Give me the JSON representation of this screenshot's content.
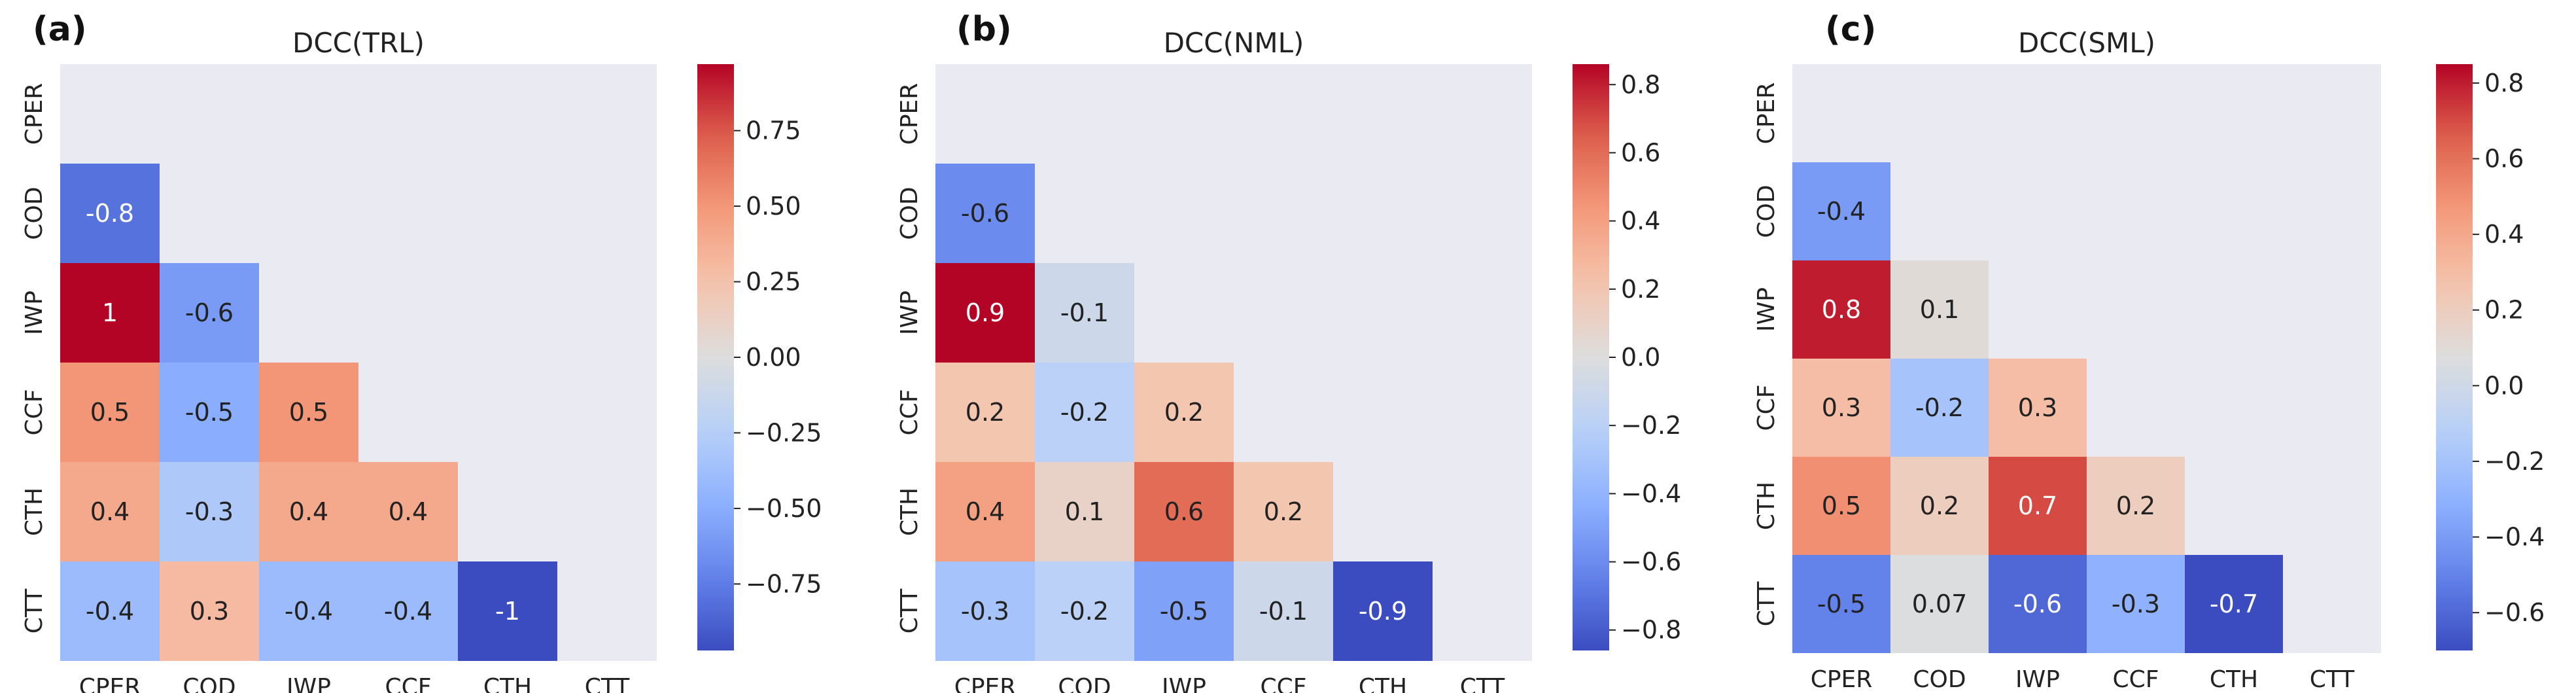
{
  "chart_data": [
    {
      "type": "heatmap",
      "panel_label": "(a)",
      "title": "DCC(TRL)",
      "variables": [
        "CPER",
        "COD",
        "IWP",
        "CCF",
        "CTH",
        "CTT"
      ],
      "mask": "upper-triangle-and-diagonal",
      "cells": [
        {
          "row": "COD",
          "col": "CPER",
          "value": -0.8,
          "label": "-0.8"
        },
        {
          "row": "IWP",
          "col": "CPER",
          "value": 1.0,
          "label": "1"
        },
        {
          "row": "IWP",
          "col": "COD",
          "value": -0.6,
          "label": "-0.6"
        },
        {
          "row": "CCF",
          "col": "CPER",
          "value": 0.5,
          "label": "0.5"
        },
        {
          "row": "CCF",
          "col": "COD",
          "value": -0.5,
          "label": "-0.5"
        },
        {
          "row": "CCF",
          "col": "IWP",
          "value": 0.5,
          "label": "0.5"
        },
        {
          "row": "CTH",
          "col": "CPER",
          "value": 0.4,
          "label": "0.4"
        },
        {
          "row": "CTH",
          "col": "COD",
          "value": -0.3,
          "label": "-0.3"
        },
        {
          "row": "CTH",
          "col": "IWP",
          "value": 0.4,
          "label": "0.4"
        },
        {
          "row": "CTH",
          "col": "CCF",
          "value": 0.4,
          "label": "0.4"
        },
        {
          "row": "CTT",
          "col": "CPER",
          "value": -0.4,
          "label": "-0.4"
        },
        {
          "row": "CTT",
          "col": "COD",
          "value": 0.3,
          "label": "0.3"
        },
        {
          "row": "CTT",
          "col": "IWP",
          "value": -0.4,
          "label": "-0.4"
        },
        {
          "row": "CTT",
          "col": "CCF",
          "value": -0.4,
          "label": "-0.4"
        },
        {
          "row": "CTT",
          "col": "CTH",
          "value": -1.0,
          "label": "-1"
        }
      ],
      "colorbar": {
        "cmap": "coolwarm",
        "vmin": -0.97,
        "vmax": 0.97,
        "ticks": [
          0.75,
          0.5,
          0.25,
          0.0,
          -0.25,
          -0.5,
          -0.75
        ],
        "tick_labels": [
          "0.75",
          "0.50",
          "0.25",
          "0.00",
          "−0.25",
          "−0.50",
          "−0.75"
        ]
      }
    },
    {
      "type": "heatmap",
      "panel_label": "(b)",
      "title": "DCC(NML)",
      "variables": [
        "CPER",
        "COD",
        "IWP",
        "CCF",
        "CTH",
        "CTT"
      ],
      "mask": "upper-triangle-and-diagonal",
      "cells": [
        {
          "row": "COD",
          "col": "CPER",
          "value": -0.6,
          "label": "-0.6"
        },
        {
          "row": "IWP",
          "col": "CPER",
          "value": 0.9,
          "label": "0.9"
        },
        {
          "row": "IWP",
          "col": "COD",
          "value": -0.1,
          "label": "-0.1"
        },
        {
          "row": "CCF",
          "col": "CPER",
          "value": 0.2,
          "label": "0.2"
        },
        {
          "row": "CCF",
          "col": "COD",
          "value": -0.2,
          "label": "-0.2"
        },
        {
          "row": "CCF",
          "col": "IWP",
          "value": 0.2,
          "label": "0.2"
        },
        {
          "row": "CTH",
          "col": "CPER",
          "value": 0.4,
          "label": "0.4"
        },
        {
          "row": "CTH",
          "col": "COD",
          "value": 0.1,
          "label": "0.1"
        },
        {
          "row": "CTH",
          "col": "IWP",
          "value": 0.6,
          "label": "0.6"
        },
        {
          "row": "CTH",
          "col": "CCF",
          "value": 0.2,
          "label": "0.2"
        },
        {
          "row": "CTT",
          "col": "CPER",
          "value": -0.3,
          "label": "-0.3"
        },
        {
          "row": "CTT",
          "col": "COD",
          "value": -0.2,
          "label": "-0.2"
        },
        {
          "row": "CTT",
          "col": "IWP",
          "value": -0.5,
          "label": "-0.5"
        },
        {
          "row": "CTT",
          "col": "CCF",
          "value": -0.1,
          "label": "-0.1"
        },
        {
          "row": "CTT",
          "col": "CTH",
          "value": -0.9,
          "label": "-0.9"
        }
      ],
      "colorbar": {
        "cmap": "coolwarm",
        "vmin": -0.86,
        "vmax": 0.86,
        "ticks": [
          0.8,
          0.6,
          0.4,
          0.2,
          0.0,
          -0.2,
          -0.4,
          -0.6,
          -0.8
        ],
        "tick_labels": [
          "0.8",
          "0.6",
          "0.4",
          "0.2",
          "0.0",
          "−0.2",
          "−0.4",
          "−0.6",
          "−0.8"
        ]
      }
    },
    {
      "type": "heatmap",
      "panel_label": "(c)",
      "title": "DCC(SML)",
      "variables": [
        "CPER",
        "COD",
        "IWP",
        "CCF",
        "CTH",
        "CTT"
      ],
      "mask": "upper-triangle-and-diagonal",
      "cells": [
        {
          "row": "COD",
          "col": "CPER",
          "value": -0.4,
          "label": "-0.4"
        },
        {
          "row": "IWP",
          "col": "CPER",
          "value": 0.8,
          "label": "0.8"
        },
        {
          "row": "IWP",
          "col": "COD",
          "value": 0.1,
          "label": "0.1"
        },
        {
          "row": "CCF",
          "col": "CPER",
          "value": 0.3,
          "label": "0.3"
        },
        {
          "row": "CCF",
          "col": "COD",
          "value": -0.2,
          "label": "-0.2"
        },
        {
          "row": "CCF",
          "col": "IWP",
          "value": 0.3,
          "label": "0.3"
        },
        {
          "row": "CTH",
          "col": "CPER",
          "value": 0.5,
          "label": "0.5"
        },
        {
          "row": "CTH",
          "col": "COD",
          "value": 0.2,
          "label": "0.2"
        },
        {
          "row": "CTH",
          "col": "IWP",
          "value": 0.7,
          "label": "0.7"
        },
        {
          "row": "CTH",
          "col": "CCF",
          "value": 0.2,
          "label": "0.2"
        },
        {
          "row": "CTT",
          "col": "CPER",
          "value": -0.5,
          "label": "-0.5"
        },
        {
          "row": "CTT",
          "col": "COD",
          "value": 0.07,
          "label": "0.07"
        },
        {
          "row": "CTT",
          "col": "IWP",
          "value": -0.6,
          "label": "-0.6"
        },
        {
          "row": "CTT",
          "col": "CCF",
          "value": -0.3,
          "label": "-0.3"
        },
        {
          "row": "CTT",
          "col": "CTH",
          "value": -0.7,
          "label": "-0.7"
        }
      ],
      "colorbar": {
        "cmap": "coolwarm",
        "vmin": -0.7,
        "vmax": 0.85,
        "ticks": [
          0.8,
          0.6,
          0.4,
          0.2,
          0.0,
          -0.2,
          -0.4,
          -0.6
        ],
        "tick_labels": [
          "0.8",
          "0.6",
          "0.4",
          "0.2",
          "0.0",
          "−0.2",
          "−0.4",
          "−0.6"
        ]
      }
    }
  ],
  "colors": {
    "plot_background": "#eaeaf2",
    "text_dark": "#222222",
    "text_light": "#ffffff"
  }
}
